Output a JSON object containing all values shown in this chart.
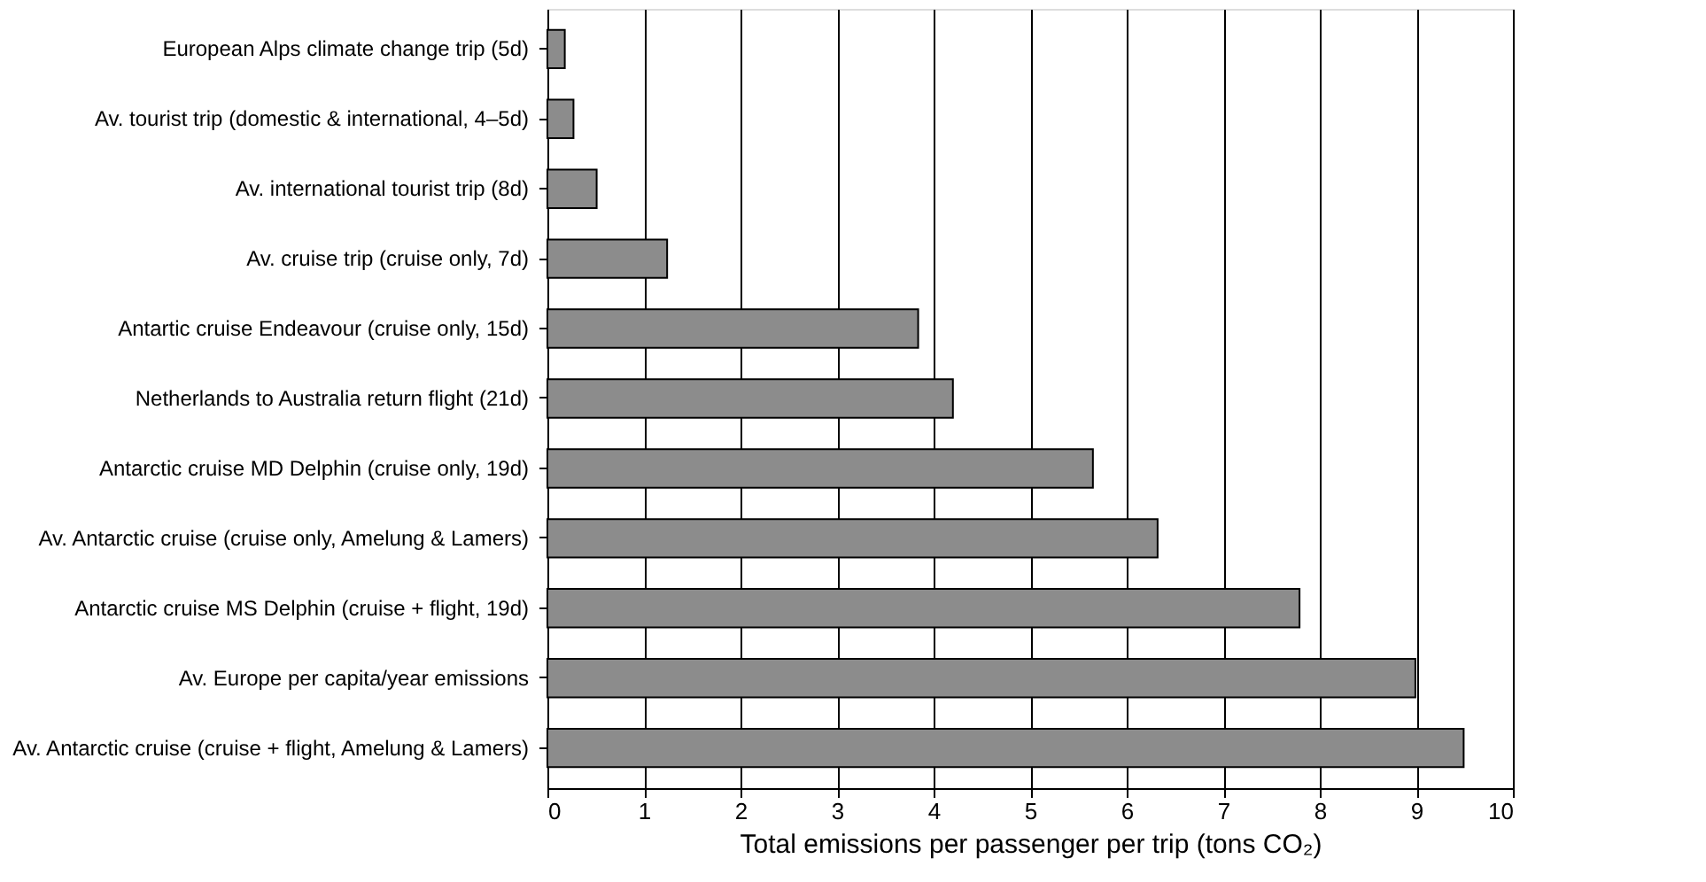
{
  "chart_data": {
    "type": "bar",
    "orientation": "horizontal",
    "categories": [
      "European Alps climate change trip (5d)",
      "Av. tourist trip (domestic & international, 4–5d)",
      "Av. international tourist trip (8d)",
      "Av. cruise trip (cruise only, 7d)",
      "Antartic cruise Endeavour (cruise only, 15d)",
      "Netherlands to Australia return flight (21d)",
      "Antarctic cruise MD Delphin (cruise only, 19d)",
      "Av. Antarctic cruise (cruise only, Amelung & Lamers)",
      "Antarctic cruise MS Delphin (cruise + flight, 19d)",
      "Av. Europe per capita/year emissions",
      "Av. Antarctic cruise (cruise + flight, Amelung & Lamers)"
    ],
    "values": [
      0.18,
      0.27,
      0.51,
      1.24,
      3.84,
      4.2,
      5.65,
      6.32,
      7.79,
      8.99,
      9.49
    ],
    "color": "#8c8c8c",
    "xlabel": "Total emissions per passenger per trip (tons CO₂)",
    "xlim": [
      0,
      10
    ],
    "xticks": [
      0,
      1,
      2,
      3,
      4,
      5,
      6,
      7,
      8,
      9,
      10
    ],
    "grid": "x"
  }
}
